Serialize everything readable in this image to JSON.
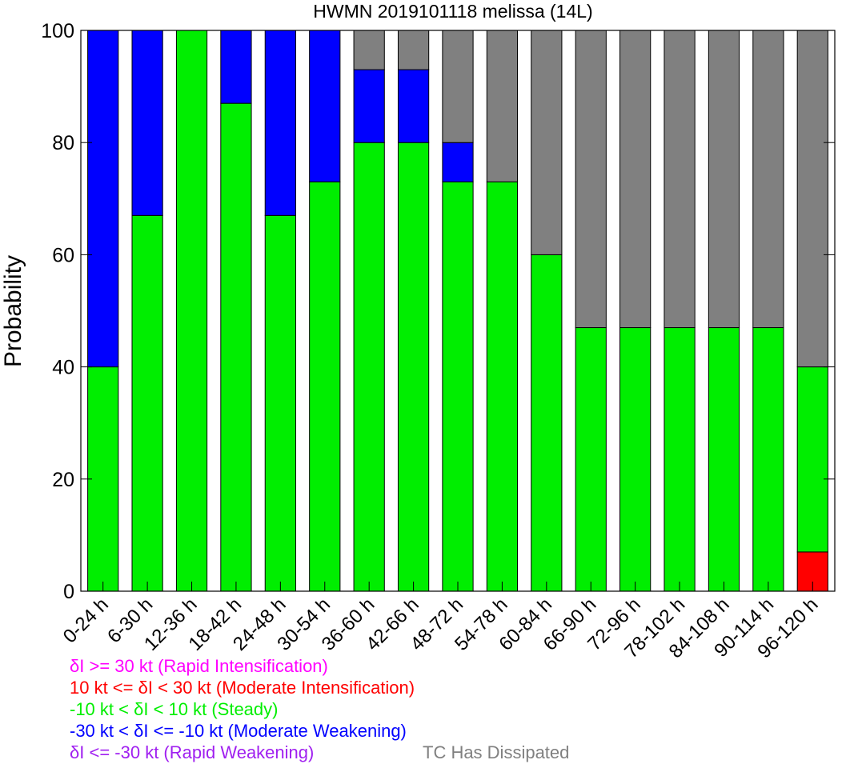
{
  "chart_data": {
    "type": "bar",
    "stacked": true,
    "title": "HWMN 2019101118 melissa (14L)",
    "xlabel": "",
    "ylabel": "Probability",
    "ylim": [
      0,
      100
    ],
    "yticks": [
      0,
      20,
      40,
      60,
      80,
      100
    ],
    "grid": false,
    "categories": [
      "0-24 h",
      "6-30 h",
      "12-36 h",
      "18-42 h",
      "24-48 h",
      "30-54 h",
      "36-60 h",
      "42-66 h",
      "48-72 h",
      "54-78 h",
      "60-84 h",
      "66-90 h",
      "72-96 h",
      "78-102 h",
      "84-108 h",
      "90-114 h",
      "96-120 h"
    ],
    "series": [
      {
        "name": "δI >= 30 kt (Rapid Intensification)",
        "color": "#ff00ff",
        "values": [
          0,
          0,
          0,
          0,
          0,
          0,
          0,
          0,
          0,
          0,
          0,
          0,
          0,
          0,
          0,
          0,
          0
        ]
      },
      {
        "name": "10 kt <= δI < 30 kt (Moderate Intensification)",
        "color": "#ff0000",
        "values": [
          0,
          0,
          0,
          0,
          0,
          0,
          0,
          0,
          0,
          0,
          0,
          0,
          0,
          0,
          0,
          0,
          7
        ]
      },
      {
        "name": "-10 kt < δI < 10 kt (Steady)",
        "color": "#00ee00",
        "values": [
          40,
          67,
          100,
          87,
          67,
          73,
          80,
          80,
          73,
          73,
          60,
          47,
          47,
          47,
          47,
          47,
          33
        ]
      },
      {
        "name": "-30 kt < δI <= -10 kt (Moderate Weakening)",
        "color": "#0000ff",
        "values": [
          60,
          33,
          0,
          13,
          33,
          27,
          13,
          13,
          7,
          0,
          0,
          0,
          0,
          0,
          0,
          0,
          0
        ]
      },
      {
        "name": "δI <= -30 kt (Rapid Weakening)",
        "color": "#a020f0",
        "values": [
          0,
          0,
          0,
          0,
          0,
          0,
          0,
          0,
          0,
          0,
          0,
          0,
          0,
          0,
          0,
          0,
          0
        ]
      },
      {
        "name": "TC Has Dissipated",
        "color": "#808080",
        "values": [
          0,
          0,
          0,
          0,
          0,
          0,
          7,
          7,
          20,
          27,
          40,
          53,
          53,
          53,
          53,
          53,
          60
        ]
      }
    ]
  },
  "legend": {
    "ri": {
      "prefix": "δ",
      "text": "I >= 30 kt (Rapid Intensification)",
      "color": "#ff00ff"
    },
    "mi": {
      "pre": "10 kt <= ",
      "prefix": "δ",
      "text": "I < 30 kt (Moderate Intensification)",
      "color": "#ff0000"
    },
    "st": {
      "pre": "-10 kt < ",
      "prefix": "δ",
      "text": "I < 10 kt (Steady)",
      "color": "#00ee00"
    },
    "mw": {
      "pre": "-30 kt < ",
      "prefix": "δ",
      "text": "I <= -10 kt (Moderate Weakening)",
      "color": "#0000ff"
    },
    "rw": {
      "prefix": "δ",
      "text": "I <= -30 kt (Rapid Weakening)",
      "color": "#a020f0"
    },
    "td": {
      "text": "TC Has Dissipated",
      "color": "#808080"
    }
  }
}
